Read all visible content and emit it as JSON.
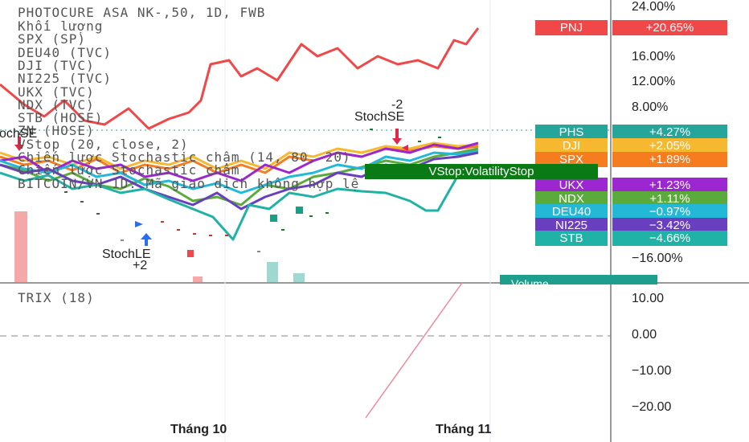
{
  "chart_data": {
    "type": "line",
    "title": "PHOTOCURE ASA NK-,50, 1D, FWB",
    "legend_lines": [
      "Khối lượng",
      "SPX (SP)",
      "DEU40 (TVC)",
      "DJI (TVC)",
      "NI225 (TVC)",
      "UKX (TVC)",
      "NDX (TVC)",
      "STB (HOSE)",
      "ZN (HOSE)",
      "VStop (20, close, 2)",
      "Chiến lược Stochastic chậm (14, 80, 20)",
      "Chiến lược Stochastic chậm",
      "BITCOIN/VN 1D: Mã giao dịch không hợp lệ"
    ],
    "y_axis_labels": [
      "24.00%",
      "16.00%",
      "12.00%",
      "8.00%",
      "−16.00%"
    ],
    "x_axis_labels": [
      "Tháng 10",
      "Tháng 11"
    ],
    "series": [
      {
        "name": "PNJ",
        "value_label": "+20.65%",
        "color": "#f04848"
      },
      {
        "name": "PHS",
        "value_label": "+4.27%",
        "color": "#26a69a"
      },
      {
        "name": "DJI",
        "value_label": "+2.05%",
        "color": "#f5b82e"
      },
      {
        "name": "SPX",
        "value_label": "+1.89%",
        "color": "#f57c1f"
      },
      {
        "name": "UKX",
        "value_label": "+1.23%",
        "color": "#9c27d0"
      },
      {
        "name": "NDX",
        "value_label": "+1.11%",
        "color": "#5aaa3c"
      },
      {
        "name": "DEU40",
        "value_label": "−0.97%",
        "color": "#22b8d6"
      },
      {
        "name": "NI225",
        "value_label": "−3.42%",
        "color": "#6a3fbf"
      },
      {
        "name": "STB",
        "value_label": "−4.66%",
        "color": "#20b2a6"
      }
    ],
    "signals": {
      "short_top": {
        "label": "StochSE",
        "qty": "-2"
      },
      "short_left": "ochSE",
      "long": {
        "label": "StochLE",
        "qty": "+2"
      },
      "vstop": "VStop:VolatilityStop",
      "volume": "Volume"
    },
    "trix": {
      "label": "TRIX (18)",
      "axis_labels": [
        "10.00",
        "0.00",
        "−10.00",
        "−20.00"
      ]
    }
  }
}
